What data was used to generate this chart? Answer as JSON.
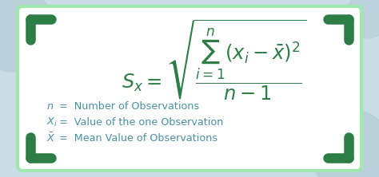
{
  "bg_color": "#c8dde4",
  "card_color": "#ffffff",
  "card_border_color": "#a0e8b0",
  "green_dark": "#2d7d46",
  "green_teal": "#4a8fa0",
  "formula": "$S_x = \\sqrt{\\dfrac{\\sum_{i=1}^{n}(x_i-\\bar{x})^2}{n - 1}}$",
  "def1_math": "$n$",
  "def1_text": " =  Number of Observations",
  "def2_math": "$X_i$",
  "def2_text": " =  Value of the one Observation",
  "def3_math": "$\\bar{X}$",
  "def3_text": " =  Mean Value of Observations",
  "corner_color": "#2d7d46",
  "circle_color": "#b8cfd8"
}
